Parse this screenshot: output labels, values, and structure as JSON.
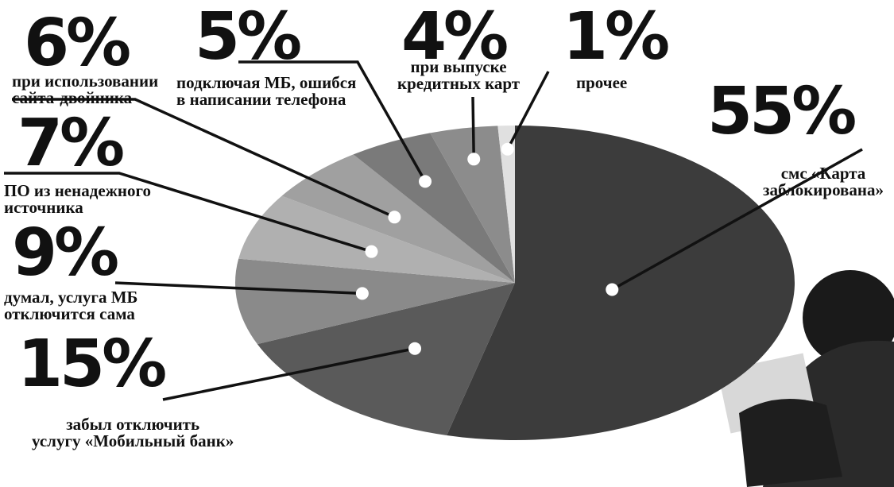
{
  "chart_data": {
    "type": "pie",
    "categories": [
      "смс «Карта\nзаблокирована»",
      "забыл отключить\nуслугу «Мобильный банк»",
      "думал, услуга МБ\nотключится сама",
      "ПО из ненадежного\nисточника",
      "при использовании\nсайта-двойника",
      "подключая МБ, ошибся\nв написании телефона",
      "при выпуске\nкредитных карт",
      "прочее"
    ],
    "values": [
      55,
      15,
      9,
      7,
      6,
      5,
      4,
      1
    ],
    "value_labels": [
      "55%",
      "15%",
      "9%",
      "7%",
      "6%",
      "5%",
      "4%",
      "1%"
    ],
    "colors": [
      "#3c3c3c",
      "#5a5a5a",
      "#8a8a8a",
      "#b0b0b0",
      "#a0a0a0",
      "#7a7a7a",
      "#8c8c8c",
      "#e0e0e0"
    ]
  }
}
